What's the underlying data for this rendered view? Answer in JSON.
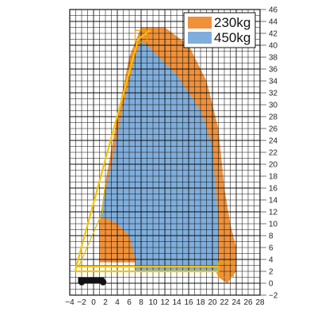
{
  "chart_data": {
    "type": "area",
    "title": "",
    "xlabel": "",
    "ylabel": "",
    "xlim": [
      -4,
      28
    ],
    "ylim": [
      -2,
      46
    ],
    "x_ticks": [
      -4,
      -2,
      0,
      2,
      4,
      6,
      8,
      10,
      12,
      14,
      16,
      18,
      20,
      22,
      24,
      26,
      28
    ],
    "y_ticks": [
      -2,
      0,
      2,
      4,
      6,
      8,
      10,
      12,
      14,
      16,
      18,
      20,
      22,
      24,
      26,
      28,
      30,
      32,
      34,
      36,
      38,
      40,
      42,
      44,
      46
    ],
    "grid": true,
    "legend_position": "top-right",
    "series": [
      {
        "name": "230kg",
        "color": "#F0913A",
        "boundary": [
          [
            8,
            43
          ],
          [
            12,
            43
          ],
          [
            16,
            40
          ],
          [
            19,
            34
          ],
          [
            21,
            26
          ],
          [
            22,
            16
          ],
          [
            23,
            10
          ],
          [
            24,
            6
          ],
          [
            24,
            2
          ],
          [
            22.5,
            0
          ],
          [
            21,
            1
          ],
          [
            20,
            3.5
          ],
          [
            7,
            3.5
          ],
          [
            5,
            3.5
          ],
          [
            1,
            3.5
          ],
          [
            1,
            10
          ],
          [
            2,
            17
          ],
          [
            4,
            28
          ],
          [
            6,
            38
          ],
          [
            8,
            43
          ]
        ]
      },
      {
        "name": "450kg",
        "color": "#7FAEDC",
        "boundary": [
          [
            8,
            41
          ],
          [
            10,
            39
          ],
          [
            14,
            35
          ],
          [
            18,
            29
          ],
          [
            20,
            23
          ],
          [
            21,
            10
          ],
          [
            21,
            2
          ],
          [
            7,
            2
          ],
          [
            7,
            4
          ],
          [
            6,
            8
          ],
          [
            4,
            10
          ],
          [
            2,
            11
          ],
          [
            1,
            11
          ],
          [
            3,
            20
          ],
          [
            5,
            30
          ],
          [
            7,
            38
          ],
          [
            8,
            41
          ]
        ]
      }
    ],
    "boom_outline": [
      [
        -3,
        2.5
      ],
      [
        7.5,
        41
      ],
      [
        8.5,
        42
      ],
      [
        9.5,
        42.5
      ],
      [
        8,
        41.5
      ],
      [
        -2.5,
        2.5
      ],
      [
        20,
        2.5
      ],
      [
        21,
        2
      ],
      [
        -3,
        2
      ]
    ]
  }
}
